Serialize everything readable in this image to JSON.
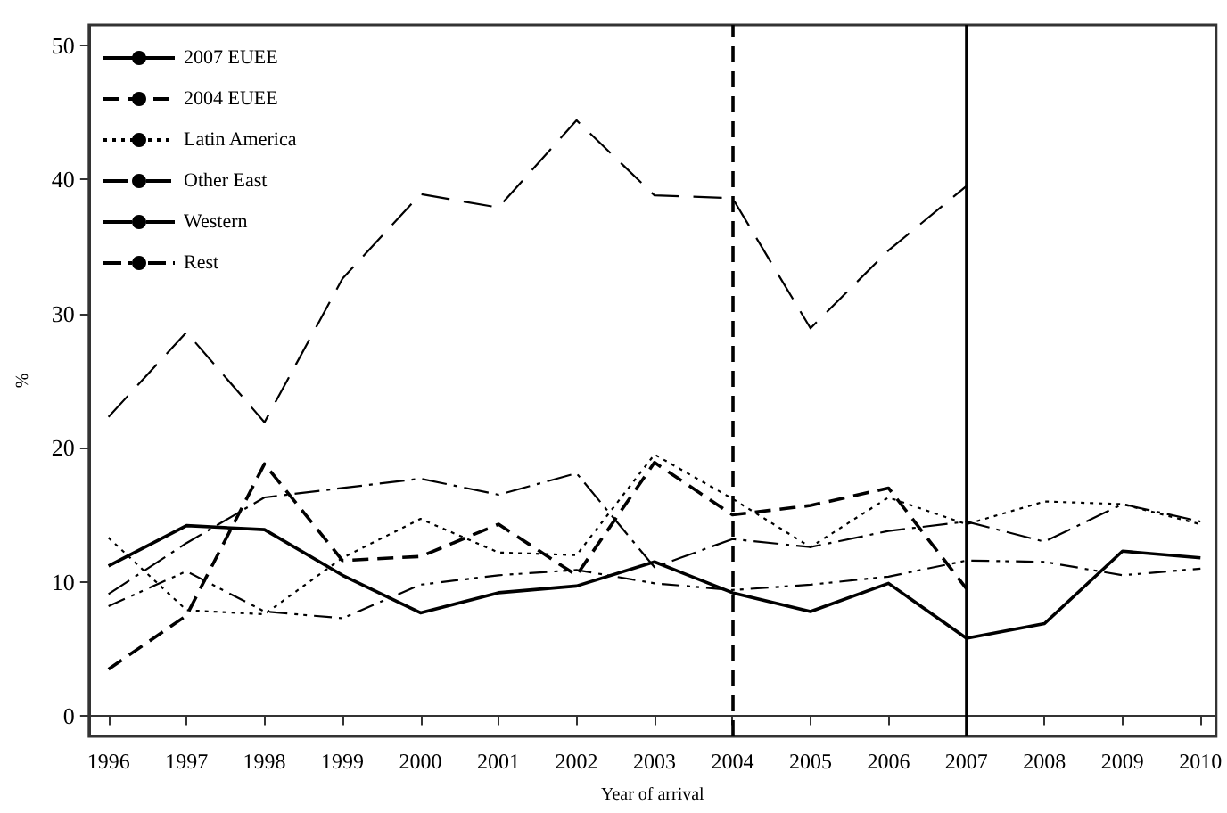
{
  "chart_data": {
    "type": "line",
    "xlabel": "Year of arrival",
    "ylabel": "%",
    "x": [
      1996,
      1997,
      1998,
      1999,
      2000,
      2001,
      2002,
      2003,
      2004,
      2005,
      2006,
      2007,
      2008,
      2009,
      2010
    ],
    "xlim": [
      1995.75,
      2010.2
    ],
    "xticks": [
      1996,
      1997,
      1998,
      1999,
      2000,
      2001,
      2002,
      2003,
      2004,
      2005,
      2006,
      2007,
      2008,
      2009,
      2010
    ],
    "ylim": [
      -1.5,
      51.5
    ],
    "yticks": [
      0,
      10,
      20,
      30,
      40,
      50
    ],
    "grid": false,
    "legend": "top left",
    "marker": "none",
    "series": [
      {
        "name": "2007 EUEE",
        "color": "#000000",
        "line_style": "solid",
        "values": [
          11.2,
          14.2,
          13.9,
          10.5,
          7.7,
          9.2,
          9.7,
          11.5,
          9.2,
          7.8,
          9.9,
          5.8,
          6.9,
          12.3,
          11.8
        ]
      },
      {
        "name": "2004 EUEE",
        "color": "#000000",
        "line_style": "dashed",
        "values": [
          3.5,
          7.5,
          18.8,
          11.6,
          11.9,
          14.3,
          10.5,
          18.9,
          15.0,
          15.7,
          17.0,
          9.5,
          null,
          null,
          null
        ]
      },
      {
        "name": "Latin America",
        "color": "#000000",
        "line_style": "dotted",
        "values": [
          13.3,
          7.9,
          7.6,
          11.8,
          14.7,
          12.2,
          12.0,
          19.5,
          16.2,
          12.6,
          16.3,
          14.3,
          16.0,
          15.8,
          14.3
        ]
      },
      {
        "name": "Other East",
        "color": "#000000",
        "line_style": "dashdot",
        "values": [
          9.1,
          12.9,
          16.3,
          17.0,
          17.7,
          16.5,
          18.1,
          11.1,
          13.2,
          12.6,
          13.8,
          14.5,
          13.0,
          15.8,
          14.5
        ]
      },
      {
        "name": "Western",
        "color": "#000000",
        "line_style": "longdash",
        "values": [
          22.3,
          28.6,
          21.9,
          32.6,
          38.9,
          37.9,
          44.4,
          38.8,
          38.6,
          28.9,
          34.7,
          39.5,
          null,
          null,
          null
        ]
      },
      {
        "name": "Rest",
        "color": "#000000",
        "line_style": "dashdotdot",
        "values": [
          8.2,
          10.8,
          7.8,
          7.3,
          9.8,
          10.5,
          10.9,
          9.9,
          9.4,
          9.8,
          10.4,
          11.6,
          11.5,
          10.5,
          11.0
        ]
      }
    ],
    "ref_lines": [
      {
        "axis": "x",
        "value": 2004,
        "line_style": "dashed",
        "color": "#000000"
      },
      {
        "axis": "x",
        "value": 2007,
        "line_style": "solid",
        "color": "#000000"
      }
    ]
  }
}
